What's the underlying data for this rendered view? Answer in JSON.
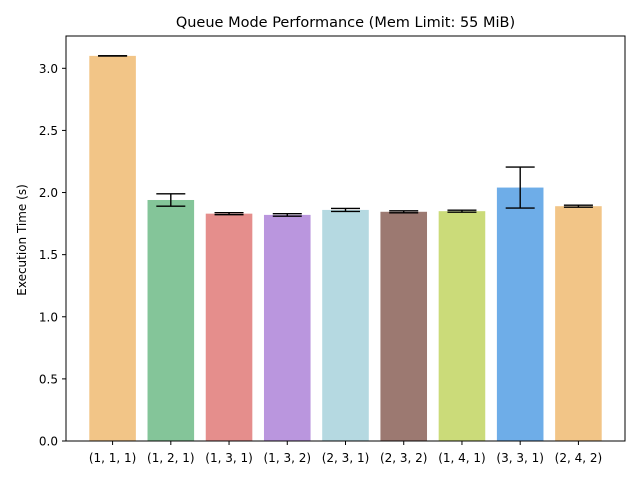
{
  "chart_data": {
    "type": "bar",
    "title": "Queue Mode Performance (Mem Limit: 55 MiB)",
    "xlabel": "",
    "ylabel": "Execution Time (s)",
    "ylim": [
      0,
      3.26
    ],
    "yticks": [
      0.0,
      0.5,
      1.0,
      1.5,
      2.0,
      2.5,
      3.0
    ],
    "ytick_labels": [
      "0.0",
      "0.5",
      "1.0",
      "1.5",
      "2.0",
      "2.5",
      "3.0"
    ],
    "grid": false,
    "legend": "none",
    "categories": [
      "(1, 1, 1)",
      "(1, 2, 1)",
      "(1, 3, 1)",
      "(1, 3, 2)",
      "(2, 3, 1)",
      "(2, 3, 2)",
      "(1, 4, 1)",
      "(3, 3, 1)",
      "(2, 4, 2)"
    ],
    "values": [
      3.1,
      1.94,
      1.83,
      1.82,
      1.86,
      1.845,
      1.85,
      2.04,
      1.89
    ],
    "errors": [
      0.0,
      0.05,
      0.008,
      0.01,
      0.012,
      0.008,
      0.008,
      0.165,
      0.008
    ],
    "colors": [
      "#f0bb72",
      "#6fbb87",
      "#e07a78",
      "#ae84d8",
      "#a8d2dc",
      "#8b6158",
      "#c2d562",
      "#559fe4",
      "#f0bb72"
    ],
    "bar_opacity": 0.85,
    "error_color": "#000000"
  }
}
